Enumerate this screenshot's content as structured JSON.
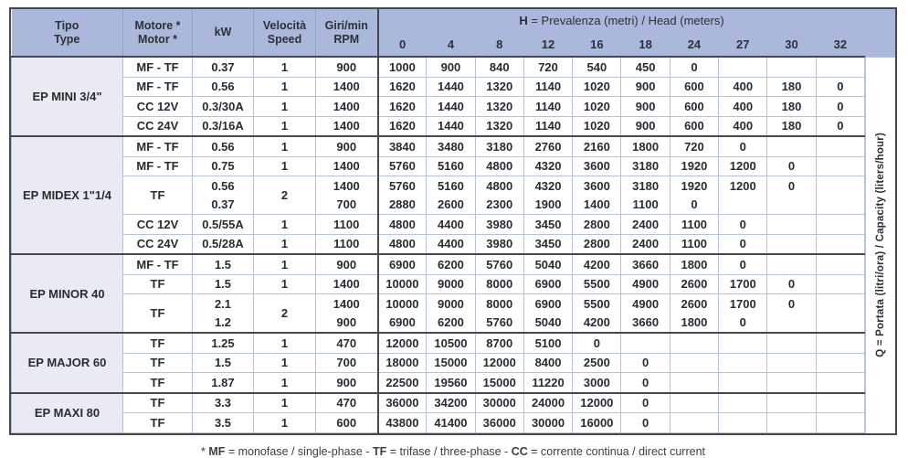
{
  "colors": {
    "header_blue": "#a9b8db",
    "group_lavender": "#e9eaf4",
    "dark_border": "#46484d",
    "light_border": "#b6c1da",
    "text": "#282c33"
  },
  "header": {
    "col_tipo": [
      "Tipo",
      "Type"
    ],
    "col_motore": [
      "Motore *",
      "Motor *"
    ],
    "col_kw": "kW",
    "col_speed": [
      "Velocità",
      "Speed"
    ],
    "col_rpm": [
      "Giri/min",
      "RPM"
    ],
    "h_bold": "H",
    "h_rest": " = Prevalenza (metri) / Head (meters)",
    "head_values": [
      "0",
      "4",
      "8",
      "12",
      "16",
      "18",
      "24",
      "27",
      "30",
      "32"
    ]
  },
  "side_label": {
    "bold": "Q",
    "rest": " = Portata (litri/ora) / Capacity (liters/hour)"
  },
  "footer": {
    "prefix": "* ",
    "mf": "MF",
    "seg1": " = monofase / single-phase - ",
    "tf": "TF",
    "seg2": " = trifase / three-phase - ",
    "cc": "CC",
    "seg3": " = corrente continua / direct current"
  },
  "chart_data": {
    "type": "table",
    "title": "Pump performance: Q = Portata (litri/ora) / Capacity (liters/hour) vs H = Prevalenza (metri) / Head (meters)",
    "head_columns_m": [
      0,
      4,
      8,
      12,
      16,
      18,
      24,
      27,
      30,
      32
    ]
  },
  "groups": [
    {
      "name": "EP MINI 3/4\"",
      "rows": [
        {
          "motor": "MF - TF",
          "kw": "0.37",
          "speed": "1",
          "rpm": "900",
          "q": [
            "1000",
            "900",
            "840",
            "720",
            "540",
            "450",
            "0",
            "",
            "",
            ""
          ]
        },
        {
          "motor": "MF - TF",
          "kw": "0.56",
          "speed": "1",
          "rpm": "1400",
          "q": [
            "1620",
            "1440",
            "1320",
            "1140",
            "1020",
            "900",
            "600",
            "400",
            "180",
            "0"
          ]
        },
        {
          "motor": "CC 12V",
          "kw": "0.3/30A",
          "speed": "1",
          "rpm": "1400",
          "q": [
            "1620",
            "1440",
            "1320",
            "1140",
            "1020",
            "900",
            "600",
            "400",
            "180",
            "0"
          ]
        },
        {
          "motor": "CC 24V",
          "kw": "0.3/16A",
          "speed": "1",
          "rpm": "1400",
          "q": [
            "1620",
            "1440",
            "1320",
            "1140",
            "1020",
            "900",
            "600",
            "400",
            "180",
            "0"
          ]
        }
      ]
    },
    {
      "name": "EP MIDEX 1\"1/4",
      "rows": [
        {
          "motor": "MF - TF",
          "kw": "0.56",
          "speed": "1",
          "rpm": "900",
          "q": [
            "3840",
            "3480",
            "3180",
            "2760",
            "2160",
            "1800",
            "720",
            "0",
            "",
            ""
          ]
        },
        {
          "motor": "MF - TF",
          "kw": "0.75",
          "speed": "1",
          "rpm": "1400",
          "q": [
            "5760",
            "5160",
            "4800",
            "4320",
            "3600",
            "3180",
            "1920",
            "1200",
            "0",
            ""
          ]
        },
        {
          "motor": "TF",
          "kw": "0.56",
          "speed": "2",
          "rpm": "1400",
          "q": [
            "5760",
            "5160",
            "4800",
            "4320",
            "3600",
            "3180",
            "1920",
            "1200",
            "0",
            ""
          ],
          "pair": "start"
        },
        {
          "kw": "0.37",
          "rpm": "700",
          "q": [
            "2880",
            "2600",
            "2300",
            "1900",
            "1400",
            "1100",
            "0",
            "",
            "",
            ""
          ],
          "pair": "end"
        },
        {
          "motor": "CC 12V",
          "kw": "0.5/55A",
          "speed": "1",
          "rpm": "1100",
          "q": [
            "4800",
            "4400",
            "3980",
            "3450",
            "2800",
            "2400",
            "1100",
            "0",
            "",
            ""
          ]
        },
        {
          "motor": "CC 24V",
          "kw": "0.5/28A",
          "speed": "1",
          "rpm": "1100",
          "q": [
            "4800",
            "4400",
            "3980",
            "3450",
            "2800",
            "2400",
            "1100",
            "0",
            "",
            ""
          ]
        }
      ]
    },
    {
      "name": "EP MINOR 40",
      "rows": [
        {
          "motor": "MF - TF",
          "kw": "1.5",
          "speed": "1",
          "rpm": "900",
          "q": [
            "6900",
            "6200",
            "5760",
            "5040",
            "4200",
            "3660",
            "1800",
            "0",
            "",
            ""
          ]
        },
        {
          "motor": "TF",
          "kw": "1.5",
          "speed": "1",
          "rpm": "1400",
          "q": [
            "10000",
            "9000",
            "8000",
            "6900",
            "5500",
            "4900",
            "2600",
            "1700",
            "0",
            ""
          ]
        },
        {
          "motor": "TF",
          "kw": "2.1",
          "speed": "2",
          "rpm": "1400",
          "q": [
            "10000",
            "9000",
            "8000",
            "6900",
            "5500",
            "4900",
            "2600",
            "1700",
            "0",
            ""
          ],
          "pair": "start"
        },
        {
          "kw": "1.2",
          "rpm": "900",
          "q": [
            "6900",
            "6200",
            "5760",
            "5040",
            "4200",
            "3660",
            "1800",
            "0",
            "",
            ""
          ],
          "pair": "end"
        }
      ]
    },
    {
      "name": "EP MAJOR 60",
      "rows": [
        {
          "motor": "TF",
          "kw": "1.25",
          "speed": "1",
          "rpm": "470",
          "q": [
            "12000",
            "10500",
            "8700",
            "5100",
            "0",
            "",
            "",
            "",
            "",
            ""
          ]
        },
        {
          "motor": "TF",
          "kw": "1.5",
          "speed": "1",
          "rpm": "700",
          "q": [
            "18000",
            "15000",
            "12000",
            "8400",
            "2500",
            "0",
            "",
            "",
            "",
            ""
          ]
        },
        {
          "motor": "TF",
          "kw": "1.87",
          "speed": "1",
          "rpm": "900",
          "q": [
            "22500",
            "19560",
            "15000",
            "11220",
            "3000",
            "0",
            "",
            "",
            "",
            ""
          ]
        }
      ]
    },
    {
      "name": "EP MAXI 80",
      "rows": [
        {
          "motor": "TF",
          "kw": "3.3",
          "speed": "1",
          "rpm": "470",
          "q": [
            "36000",
            "34200",
            "30000",
            "24000",
            "12000",
            "0",
            "",
            "",
            "",
            ""
          ]
        },
        {
          "motor": "TF",
          "kw": "3.5",
          "speed": "1",
          "rpm": "600",
          "q": [
            "43800",
            "41400",
            "36000",
            "30000",
            "16000",
            "0",
            "",
            "",
            "",
            ""
          ]
        }
      ]
    }
  ]
}
